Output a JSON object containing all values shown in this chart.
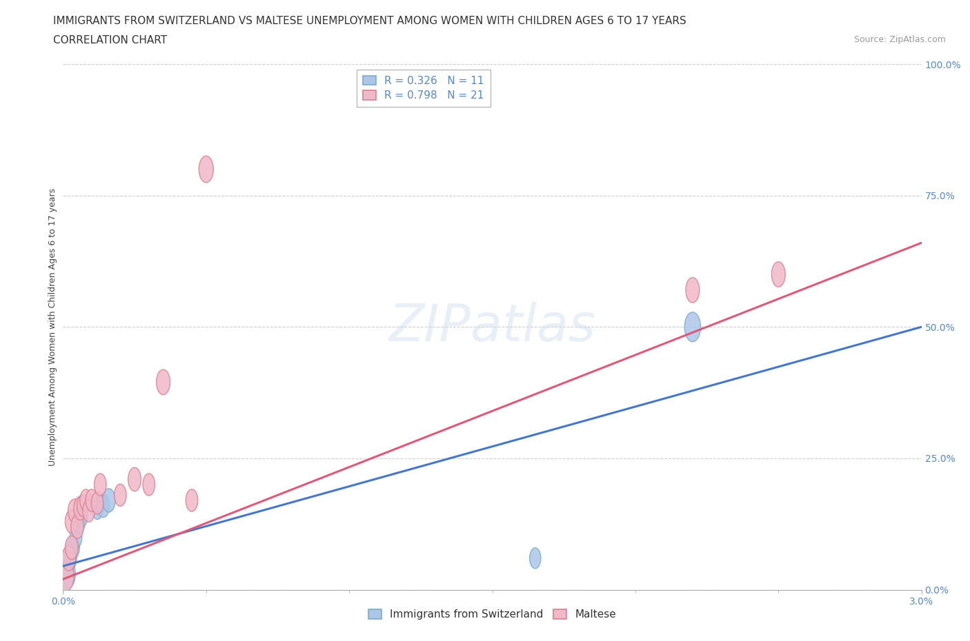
{
  "title_line1": "IMMIGRANTS FROM SWITZERLAND VS MALTESE UNEMPLOYMENT AMONG WOMEN WITH CHILDREN AGES 6 TO 17 YEARS",
  "title_line2": "CORRELATION CHART",
  "source_text": "Source: ZipAtlas.com",
  "ylabel": "Unemployment Among Women with Children Ages 6 to 17 years",
  "xlim": [
    0.0,
    0.03
  ],
  "ylim": [
    0.0,
    1.0
  ],
  "ytick_labels": [
    "0.0%",
    "25.0%",
    "50.0%",
    "75.0%",
    "100.0%"
  ],
  "ytick_values": [
    0.0,
    0.25,
    0.5,
    0.75,
    1.0
  ],
  "xtick_minor": [
    0.005,
    0.01,
    0.015,
    0.02,
    0.025
  ],
  "grid_color": "#c8c8d0",
  "background_color": "#ffffff",
  "watermark": "ZIPatlas",
  "swiss_color": "#adc6e8",
  "swiss_edge_color": "#7aaad0",
  "swiss_line_color": "#4477cc",
  "swiss_R": 0.326,
  "swiss_N": 11,
  "swiss_x": [
    0.00015,
    0.00025,
    0.00035,
    0.00045,
    0.00055,
    0.00065,
    0.0012,
    0.0014,
    0.0016,
    0.0165,
    0.022
  ],
  "swiss_y": [
    0.03,
    0.06,
    0.08,
    0.1,
    0.13,
    0.14,
    0.155,
    0.16,
    0.17,
    0.06,
    0.5
  ],
  "swiss_sizes": [
    200,
    160,
    160,
    150,
    160,
    150,
    150,
    160,
    160,
    140,
    200
  ],
  "maltese_color": "#f0b8c8",
  "maltese_edge_color": "#d88090",
  "maltese_line_color": "#e05878",
  "maltese_R": 0.798,
  "maltese_N": 21,
  "maltese_x": [
    0.0001,
    0.0002,
    0.0003,
    0.0003,
    0.0004,
    0.0005,
    0.0006,
    0.0007,
    0.0008,
    0.0009,
    0.001,
    0.0012,
    0.0013,
    0.002,
    0.0025,
    0.003,
    0.0035,
    0.0045,
    0.005,
    0.022,
    0.025
  ],
  "maltese_y": [
    0.025,
    0.06,
    0.08,
    0.13,
    0.15,
    0.12,
    0.155,
    0.16,
    0.17,
    0.15,
    0.17,
    0.165,
    0.2,
    0.18,
    0.21,
    0.2,
    0.395,
    0.17,
    0.8,
    0.57,
    0.6
  ],
  "maltese_sizes": [
    200,
    170,
    160,
    160,
    160,
    160,
    160,
    150,
    150,
    150,
    150,
    150,
    150,
    150,
    160,
    150,
    170,
    150,
    180,
    170,
    170
  ],
  "swiss_line_y0": 0.045,
  "swiss_line_y1": 0.5,
  "maltese_line_y0": 0.02,
  "maltese_line_y1": 0.66,
  "legend_swiss_label": "Immigrants from Switzerland",
  "legend_maltese_label": "Maltese",
  "title_fontsize": 11,
  "subtitle_fontsize": 11,
  "axis_label_fontsize": 9,
  "tick_fontsize": 10,
  "legend_fontsize": 11,
  "source_fontsize": 9
}
